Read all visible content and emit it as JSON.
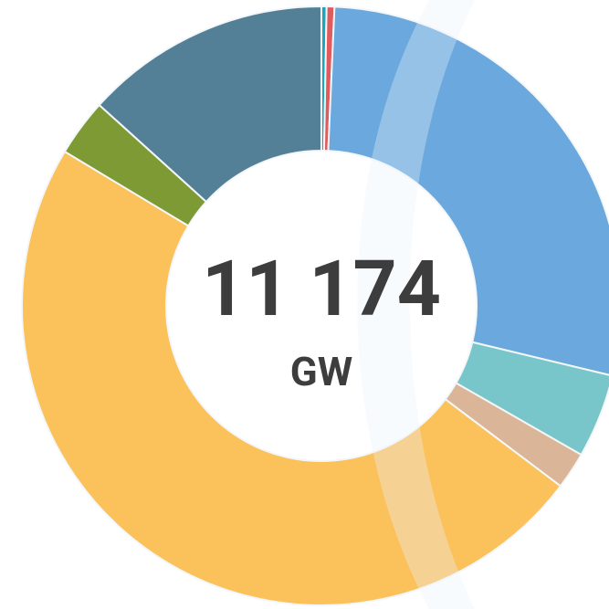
{
  "chart_data": {
    "type": "donut",
    "center_value": "11 174",
    "center_unit": "GW",
    "values": [
      31,
      47,
      3135,
      506,
      223,
      5401,
      345,
      1486
    ],
    "colors": [
      "#1aa7bd",
      "#e05a5e",
      "#6aa8dd",
      "#78c6ca",
      "#dbb597",
      "#fbc15b",
      "#7e9a35",
      "#537f97"
    ]
  }
}
